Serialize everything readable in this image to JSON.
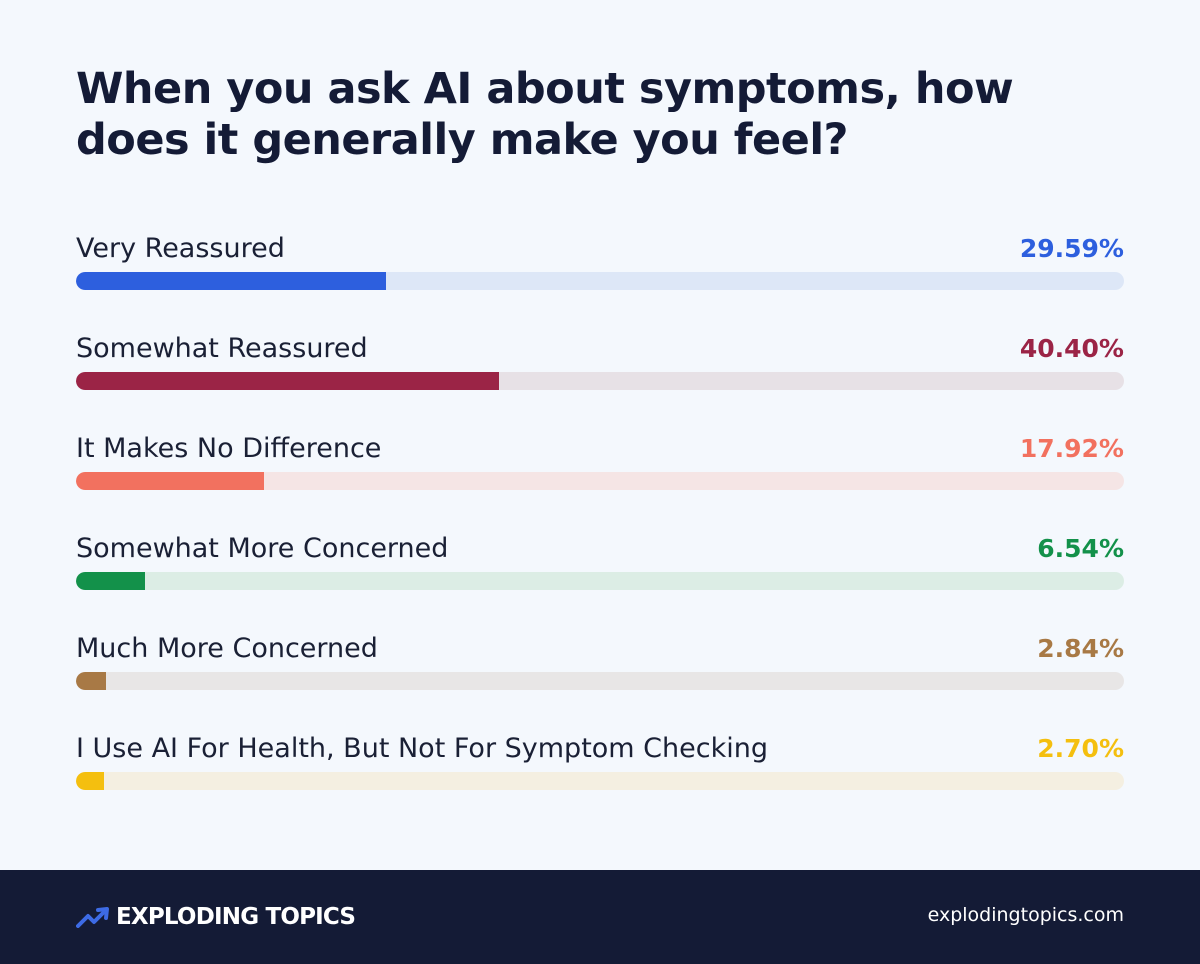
{
  "header": {
    "title": "When you ask AI about symptoms, how does it generally make you feel?"
  },
  "chart_data": {
    "type": "bar",
    "orientation": "horizontal",
    "xlim": [
      0,
      100
    ],
    "categories": [
      "Very Reassured",
      "Somewhat Reassured",
      "It Makes No Difference",
      "Somewhat More Concerned",
      "Much More Concerned",
      "I Use AI For Health, But Not For Symptom Checking"
    ],
    "values": [
      29.59,
      40.4,
      17.92,
      6.54,
      2.84,
      2.7
    ],
    "value_labels": [
      "29.59%",
      "40.40%",
      "17.92%",
      "6.54%",
      "2.84%",
      "2.70%"
    ],
    "colors": [
      "#2d5fde",
      "#9b2446",
      "#f2715f",
      "#13914a",
      "#a87945",
      "#f4bf0f"
    ],
    "track_colors": [
      "#dde7f7",
      "#e7e1e6",
      "#f5e5e5",
      "#dcede5",
      "#e8e6e6",
      "#f4efe1"
    ]
  },
  "footer": {
    "brand": "EXPLODING TOPICS",
    "brand_icon": "trending-arrow-icon",
    "brand_icon_color": "#3d6be5",
    "site": "explodingtopics.com"
  }
}
